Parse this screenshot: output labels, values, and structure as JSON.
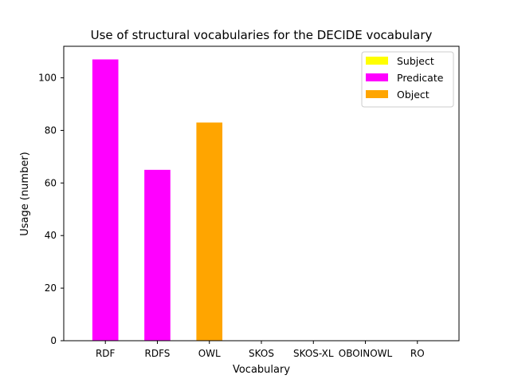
{
  "chart_data": {
    "type": "bar",
    "title": "Use of structural vocabularies for the DECIDE vocabulary",
    "xlabel": "Vocabulary",
    "ylabel": "Usage (number)",
    "categories": [
      "RDF",
      "RDFS",
      "OWL",
      "SKOS",
      "SKOS-XL",
      "OBOINOWL",
      "RO"
    ],
    "ylim": [
      0,
      112
    ],
    "yticks": [
      0,
      20,
      40,
      60,
      80,
      100
    ],
    "grid": false,
    "legend_position": "top-right",
    "series": [
      {
        "name": "Subject",
        "color": "#ffff00",
        "values": [
          0,
          0,
          0,
          0,
          0,
          0,
          0
        ]
      },
      {
        "name": "Predicate",
        "color": "#ff00ff",
        "values": [
          107,
          65,
          0,
          0,
          0,
          0,
          0
        ]
      },
      {
        "name": "Object",
        "color": "#ffa500",
        "values": [
          0,
          0,
          83,
          0,
          0,
          0,
          0
        ]
      }
    ]
  }
}
